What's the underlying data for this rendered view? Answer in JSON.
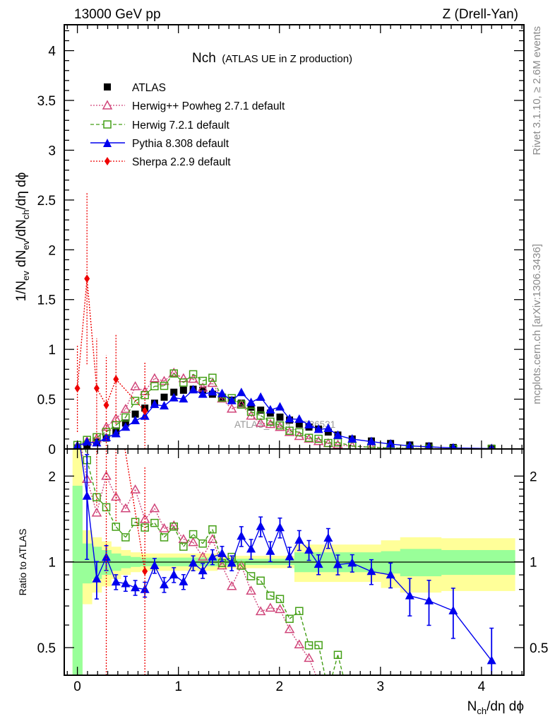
{
  "header": {
    "left": "13000 GeV pp",
    "right": "Z (Drell-Yan)"
  },
  "side_text": {
    "rivet": "Rivet 3.1.10, ≥ 2.6M events",
    "mcplots": "mcplots.cern.ch [arXiv:1306.3436]"
  },
  "chart_data": {
    "type": "line",
    "title": "Nch",
    "subtitle": "(ATLAS UE in Z production)",
    "watermark": "ATLAS_2019_I1736531",
    "xlabel": {
      "base": "N",
      "sub": "ch",
      "rest": "/dη dϕ"
    },
    "ylabel": {
      "p1": "1/N",
      "s1": "ev",
      "p2": " dN",
      "s2": "ev",
      "p3": "/dN",
      "s3": "ch",
      "p4": "/dη dϕ"
    },
    "ratio_ylabel": "Ratio to ATLAS",
    "xlim": [
      -0.13,
      4.42
    ],
    "ylim": [
      0,
      4.26
    ],
    "ratio_ylim": [
      0.4,
      2.49
    ],
    "ratio_scale": "log",
    "legend_position": "top-left",
    "x_ticks": [
      0,
      1,
      2,
      3,
      4
    ],
    "x_tick_labels": [
      "0",
      "1",
      "2",
      "3",
      "4"
    ],
    "y_ticks": [
      0,
      0.5,
      1,
      1.5,
      2,
      2.5,
      3,
      3.5,
      4
    ],
    "y_tick_labels": [
      "0",
      "0.5",
      "1",
      "1.5",
      "2",
      "2.5",
      "3",
      "3.5",
      "4"
    ],
    "ratio_ticks": [
      0.5,
      1,
      2
    ],
    "ratio_tick_labels": [
      "0.5",
      "1",
      "2"
    ],
    "x": [
      0,
      0.095,
      0.191,
      0.286,
      0.382,
      0.477,
      0.573,
      0.668,
      0.764,
      0.859,
      0.955,
      1.05,
      1.146,
      1.241,
      1.337,
      1.432,
      1.528,
      1.623,
      1.719,
      1.814,
      1.91,
      2.005,
      2.1,
      2.196,
      2.292,
      2.387,
      2.483,
      2.578,
      2.72,
      2.91,
      3.1,
      3.29,
      3.48,
      3.72,
      4.1
    ],
    "band_yellow_rel": [
      1.5,
      0.29,
      0.22,
      0.18,
      0.13,
      0.1,
      0.08,
      0.07,
      0.07,
      0.07,
      0.07,
      0.07,
      0.07,
      0.07,
      0.07,
      0.05,
      0.05,
      0.05,
      0.05,
      0.05,
      0.05,
      0.05,
      0.05,
      0.15,
      0.15,
      0.15,
      0.15,
      0.15,
      0.15,
      0.15,
      0.19,
      0.22,
      0.22,
      0.21,
      0.21
    ],
    "band_green_rel": [
      0.85,
      0.16,
      0.13,
      0.1,
      0.07,
      0.05,
      0.04,
      0.035,
      0.035,
      0.035,
      0.035,
      0.035,
      0.035,
      0.035,
      0.035,
      0.025,
      0.025,
      0.025,
      0.025,
      0.025,
      0.025,
      0.025,
      0.025,
      0.08,
      0.08,
      0.08,
      0.08,
      0.08,
      0.08,
      0.08,
      0.09,
      0.11,
      0.11,
      0.1,
      0.1
    ],
    "series": [
      {
        "name": "ATLAS",
        "color": "#000000",
        "marker": "square-filled",
        "line": "none",
        "values": [
          0.01,
          0.04,
          0.07,
          0.11,
          0.18,
          0.26,
          0.35,
          0.41,
          0.46,
          0.52,
          0.57,
          0.59,
          0.6,
          0.59,
          0.55,
          0.52,
          0.49,
          0.46,
          0.42,
          0.39,
          0.36,
          0.32,
          0.29,
          0.25,
          0.22,
          0.2,
          0.17,
          0.14,
          0.1,
          0.08,
          0.055,
          0.04,
          0.03,
          0.015,
          0.008
        ]
      },
      {
        "name": "Herwig++ Powheg 2.7.1 default",
        "color": "#d0457a",
        "marker": "triangle-open",
        "line": "dotted",
        "values": [
          0.03,
          0.078,
          0.104,
          0.22,
          0.304,
          0.4,
          0.627,
          0.578,
          0.708,
          0.681,
          0.764,
          0.708,
          0.702,
          0.614,
          0.66,
          0.504,
          0.402,
          0.446,
          0.332,
          0.261,
          0.248,
          0.218,
          0.168,
          0.128,
          0.101,
          0.076,
          0.056,
          0.042,
          0.028,
          0.019,
          0.012,
          0.007,
          0.004,
          0.002,
          0.001
        ]
      },
      {
        "name": "Herwig 7.2.1 default",
        "color": "#449f16",
        "marker": "square-open",
        "line": "dashed",
        "values": [
          0.04,
          0.091,
          0.118,
          0.171,
          0.239,
          0.317,
          0.483,
          0.541,
          0.63,
          0.634,
          0.758,
          0.667,
          0.75,
          0.684,
          0.715,
          0.515,
          0.51,
          0.446,
          0.374,
          0.335,
          0.274,
          0.237,
          0.183,
          0.168,
          0.112,
          0.102,
          0.06,
          0.066,
          0.03,
          0.016,
          0.009,
          0.005,
          0.003,
          0.0015,
          0.001
        ]
      },
      {
        "name": "Pythia 8.308 default",
        "color": "#0000ee",
        "marker": "triangle-filled",
        "line": "solid",
        "values": [
          0.03,
          0.068,
          0.061,
          0.114,
          0.153,
          0.218,
          0.284,
          0.328,
          0.446,
          0.432,
          0.513,
          0.502,
          0.594,
          0.549,
          0.572,
          0.556,
          0.485,
          0.566,
          0.466,
          0.519,
          0.392,
          0.422,
          0.302,
          0.298,
          0.242,
          0.196,
          0.206,
          0.137,
          0.099,
          0.074,
          0.0495,
          0.0304,
          0.0219,
          0.0101,
          0.0036
        ],
        "rel_err": [
          0.1,
          0.4,
          0.15,
          0.1,
          0.06,
          0.06,
          0.06,
          0.06,
          0.06,
          0.06,
          0.06,
          0.06,
          0.06,
          0.06,
          0.06,
          0.06,
          0.06,
          0.08,
          0.08,
          0.08,
          0.08,
          0.08,
          0.08,
          0.08,
          0.08,
          0.08,
          0.08,
          0.08,
          0.07,
          0.1,
          0.1,
          0.15,
          0.18,
          0.2,
          0.3
        ]
      },
      {
        "name": "Sherpa 2.2.9 default",
        "color": "#ee0000",
        "marker": "diamond-filled",
        "line": "dotted",
        "x": [
          0,
          0.095,
          0.191,
          0.286,
          0.382,
          0.668
        ],
        "values": [
          0.61,
          1.71,
          0.61,
          0.44,
          0.7,
          0.38
        ],
        "errors": [
          0.44,
          0.86,
          0.5,
          0.5,
          0.45,
          0.5
        ]
      }
    ]
  }
}
